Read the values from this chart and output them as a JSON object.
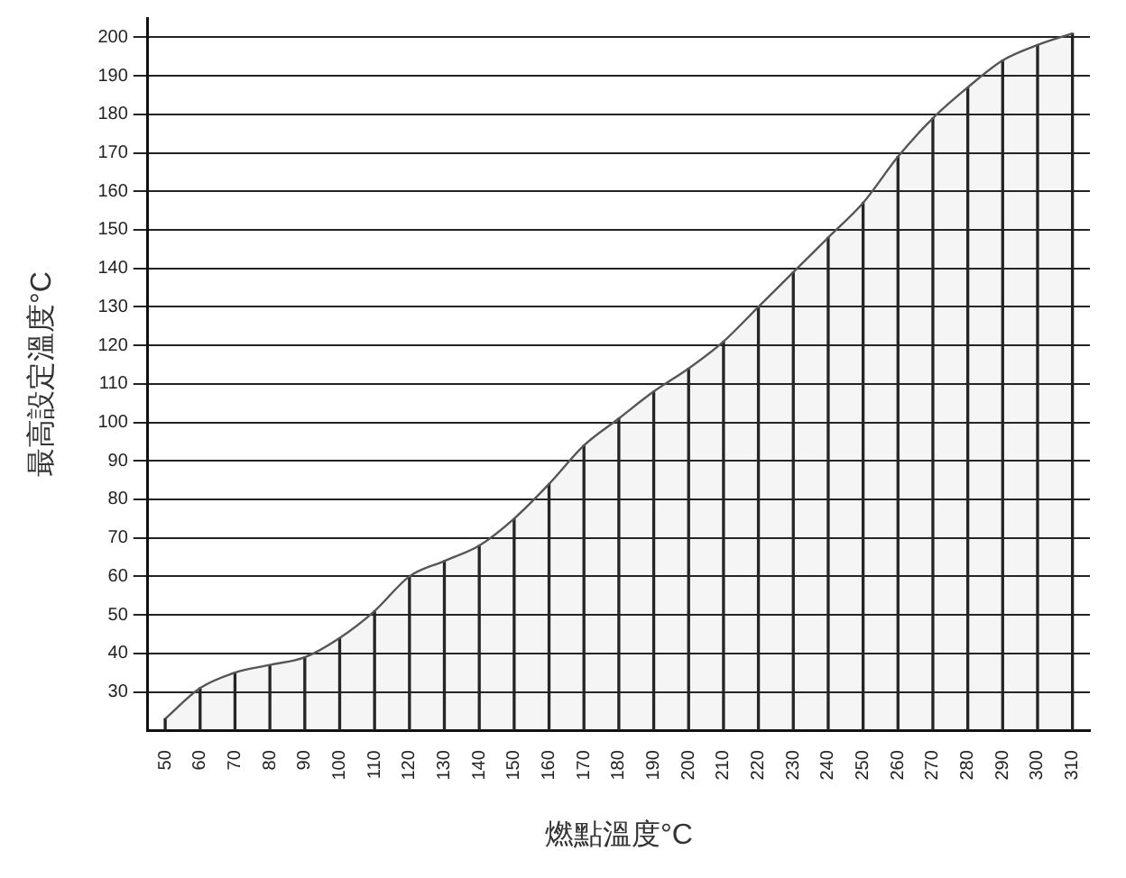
{
  "chart_data": {
    "type": "area",
    "xlabel": "燃點溫度°C",
    "ylabel": "最高設定溫度°C",
    "categories": [
      "50",
      "60",
      "70",
      "80",
      "90",
      "100",
      "110",
      "120",
      "130",
      "140",
      "150",
      "160",
      "170",
      "180",
      "190",
      "200",
      "210",
      "220",
      "230",
      "240",
      "250",
      "260",
      "270",
      "280",
      "290",
      "300",
      "310"
    ],
    "series": [
      {
        "color": "#555555",
        "values": [
          23,
          31,
          35,
          37,
          39,
          44,
          51,
          60,
          64,
          68,
          75,
          84,
          94,
          101,
          108,
          114,
          121,
          130,
          139,
          148,
          157,
          169,
          179,
          187,
          194,
          198,
          201
        ]
      },
      {
        "type": "bar",
        "color": "#222222",
        "values": [
          23,
          31,
          35,
          37,
          39,
          44,
          51,
          60,
          64,
          68,
          75,
          84,
          94,
          101,
          108,
          114,
          121,
          130,
          139,
          148,
          157,
          169,
          179,
          187,
          194,
          198,
          201
        ]
      }
    ],
    "ylim": [
      20,
      205
    ],
    "yticks": [
      30,
      40,
      50,
      60,
      70,
      80,
      90,
      100,
      110,
      120,
      130,
      140,
      150,
      160,
      170,
      180,
      190,
      200
    ],
    "grid": "y",
    "marker": "none",
    "line_style": "solid",
    "legend": false
  }
}
